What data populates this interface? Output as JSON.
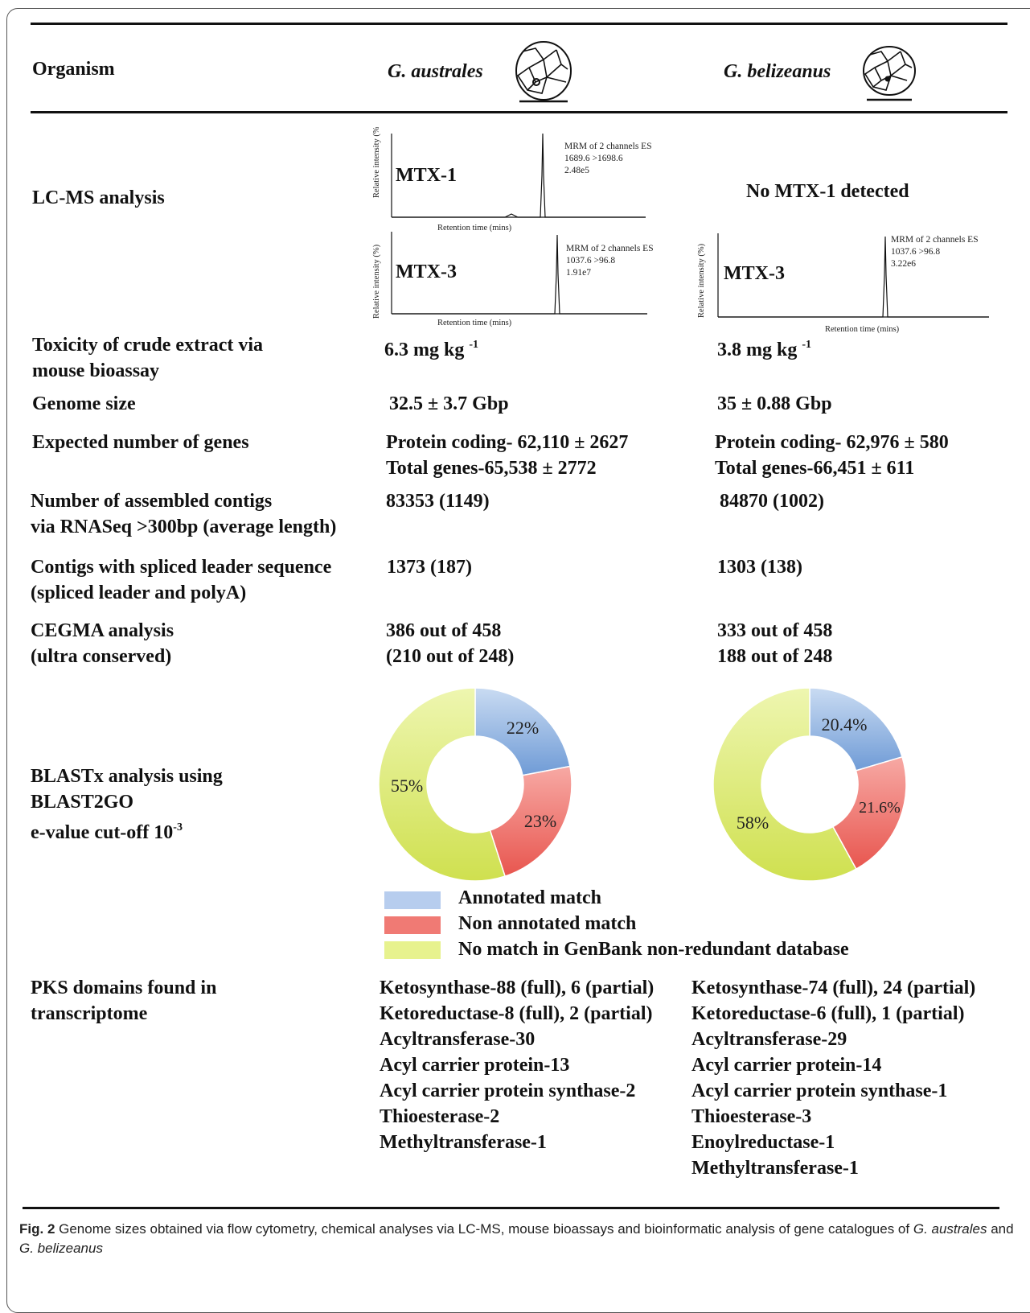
{
  "header": {
    "organism_label": "Organism",
    "species": [
      "G. australes",
      "G. belizeanus"
    ]
  },
  "lcms": {
    "row_label": "LC-MS analysis",
    "australes_mtx1": {
      "label": "MTX-1",
      "info": [
        "MRM of 2 channels ES",
        "1689.6 >1698.6",
        "2.48e5"
      ],
      "ylabel": "Relative intensity (%)",
      "xlabel": "Retention time (mins)"
    },
    "australes_mtx3": {
      "label": "MTX-3",
      "info": [
        "MRM of 2 channels ES",
        "1037.6 >96.8",
        "1.91e7"
      ],
      "ylabel": "Relative intensity (%)",
      "xlabel": "Retention time (mins)"
    },
    "belizeanus_none": "No MTX-1 detected",
    "belizeanus_mtx3": {
      "label": "MTX-3",
      "info": [
        "MRM of 2 channels ES",
        "1037.6 >96.8",
        "3.22e6"
      ],
      "ylabel": "Relative intensity (%)",
      "xlabel": "Retention time (mins)"
    }
  },
  "rows": {
    "toxicity": {
      "label": [
        "Toxicity of crude extract via",
        "mouse bioassay"
      ],
      "australes": "6.3 mg kg",
      "belizeanus": "3.8 mg kg",
      "exp": "-1"
    },
    "genome": {
      "label": "Genome size",
      "australes": "32.5 ± 3.7 Gbp",
      "belizeanus": "35 ± 0.88 Gbp"
    },
    "genes": {
      "label": "Expected number of genes",
      "australes": [
        "Protein coding- 62,110 ± 2627",
        "Total genes-65,538 ± 2772"
      ],
      "belizeanus": [
        "Protein coding- 62,976 ± 580",
        "Total genes-66,451 ± 611"
      ]
    },
    "contigs": {
      "label": [
        "Number of assembled contigs",
        "via RNASeq >300bp (average length)"
      ],
      "australes": "83353 (1149)",
      "belizeanus": "84870 (1002)"
    },
    "spliced": {
      "label": [
        "Contigs with spliced leader sequence",
        "(spliced leader and polyA)"
      ],
      "australes": "1373 (187)",
      "belizeanus": "1303 (138)"
    },
    "cegma": {
      "label": [
        "CEGMA analysis",
        "(ultra conserved)"
      ],
      "australes": [
        "386 out of 458",
        "(210 out of 248)"
      ],
      "belizeanus": [
        "333 out of 458",
        "188 out of 248"
      ]
    },
    "blast": {
      "label": [
        "BLASTx analysis using",
        "BLAST2GO",
        "e-value cut-off 10"
      ],
      "exp": "-3"
    },
    "pks": {
      "label": [
        "PKS domains found in",
        "transcriptome"
      ],
      "australes": [
        "Ketosynthase-88 (full), 6 (partial)",
        "Ketoreductase-8 (full), 2 (partial)",
        "Acyltransferase-30",
        "Acyl carrier protein-13",
        "Acyl carrier protein synthase-2",
        "Thioesterase-2",
        "Methyltransferase-1"
      ],
      "belizeanus": [
        "Ketosynthase-74 (full), 24 (partial)",
        "Ketoreductase-6 (full), 1 (partial)",
        "Acyltransferase-29",
        "Acyl carrier protein-14",
        "Acyl carrier protein synthase-1",
        "Thioesterase-3",
        "Enoylreductase-1",
        "Methyltransferase-1"
      ]
    }
  },
  "colors": {
    "annotated": "#6f9bd6",
    "non_annotated": "#e8564f",
    "no_match": "#dbe86a"
  },
  "chart_data": [
    {
      "type": "pie",
      "categories": [
        "Annotated match",
        "Non annotated match",
        "No match in GenBank non-redundant database"
      ],
      "values": [
        22,
        23,
        55
      ],
      "labels": [
        "22%",
        "23%",
        "55%"
      ]
    },
    {
      "type": "pie",
      "categories": [
        "Annotated match",
        "Non annotated match",
        "No match in GenBank non-redundant database"
      ],
      "values": [
        20.4,
        21.6,
        58
      ],
      "labels": [
        "20.4%",
        "21.6%",
        "58%"
      ]
    }
  ],
  "legend": [
    "Annotated match",
    "Non annotated match",
    "No match in GenBank non-redundant database"
  ],
  "caption": {
    "fig": "Fig. 2",
    "text_1": " Genome sizes obtained via flow cytometry, chemical analyses via LC-MS, mouse bioassays and bioinformatic analysis of gene catalogues of",
    "sp1": "G. australes",
    "and": " and ",
    "sp2": "G. belizeanus"
  }
}
